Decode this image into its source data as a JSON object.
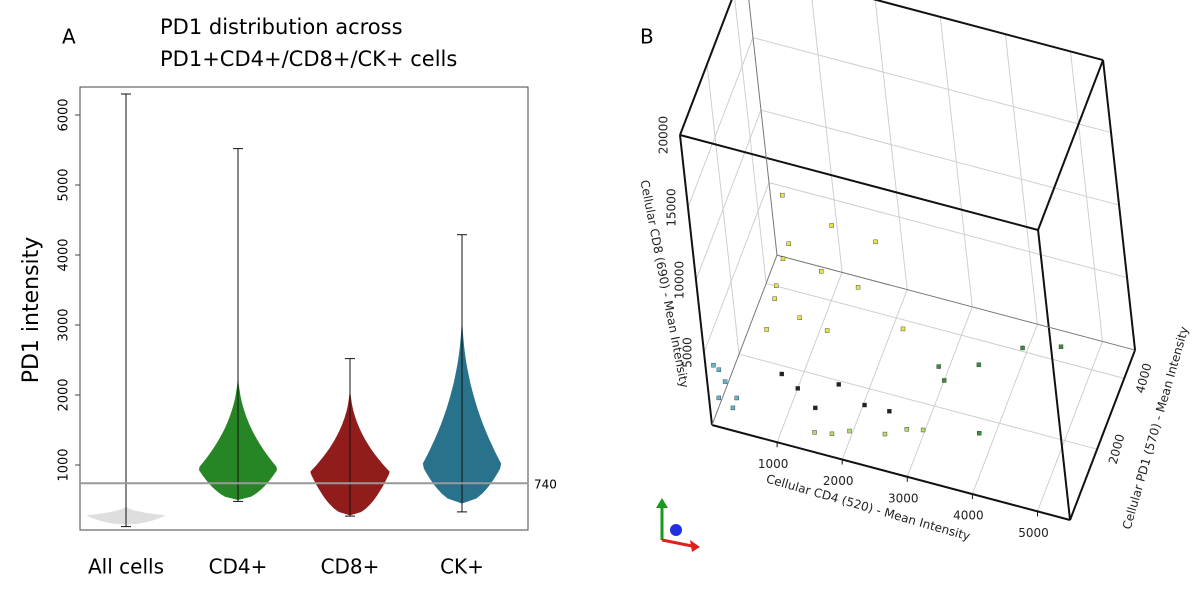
{
  "chart_data": [
    {
      "type": "violin",
      "panel": "A",
      "title": [
        "PD1 distribution across",
        "PD1+CD4+/CD8+/CK+ cells"
      ],
      "y_label": "PD1 intensity",
      "categories": [
        "All cells",
        "CD4+",
        "CD8+",
        "CK+"
      ],
      "whisker_min": [
        120,
        480,
        270,
        330
      ],
      "whisker_max": [
        6300,
        5520,
        2520,
        4290
      ],
      "violin_low": [
        150,
        500,
        280,
        450
      ],
      "violin_peak": [
        280,
        950,
        900,
        1000
      ],
      "violin_high": [
        420,
        2400,
        2200,
        3300
      ],
      "colors": [
        "#dcdcdc",
        "#1a7f1a",
        "#8b1010",
        "#1d6a85"
      ],
      "threshold": 740,
      "ylim": [
        0,
        6400
      ],
      "yticks": [
        1000,
        2000,
        3000,
        4000,
        5000,
        6000
      ]
    },
    {
      "type": "scatter3d",
      "panel": "B",
      "x_label": "Cellular CD4 (520) - Mean Intensity",
      "y_label": "Cellular CD8 (690) - Mean Intensity",
      "z_label": "Cellular PD1 (570) - Mean Intensity",
      "xlim": [
        0,
        5500
      ],
      "ylim": [
        0,
        20000
      ],
      "zlim": [
        0,
        4800
      ],
      "xticks": [
        1000,
        2000,
        3000,
        4000,
        5000
      ],
      "yticks": [
        5000,
        10000,
        15000,
        20000
      ],
      "zticks": [
        2000,
        4000
      ],
      "series": [
        {
          "color": "#e6e64a",
          "x": [
            800,
            1000,
            1200,
            1500,
            700,
            1800,
            1300,
            2000,
            900,
            1600,
            2300,
            2500,
            1100
          ],
          "y": [
            6000,
            9000,
            11000,
            8000,
            4500,
            12000,
            6500,
            7000,
            7500,
            5000,
            10000,
            3500,
            13500
          ],
          "z": [
            1500,
            1500,
            1200,
            1800,
            1200,
            1600,
            1000,
            2000,
            1300,
            1400,
            2200,
            2500,
            1500
          ]
        },
        {
          "color": "#5fb7d4",
          "x": [
            100,
            200,
            300,
            150,
            250,
            100
          ],
          "y": [
            1500,
            2500,
            1000,
            3500,
            500,
            4000
          ],
          "z": [
            200,
            300,
            500,
            200,
            400,
            100
          ]
        },
        {
          "color": "#222222",
          "x": [
            1200,
            1500,
            1800,
            2200,
            1000,
            2500
          ],
          "y": [
            2000,
            1500,
            2500,
            1800,
            3000,
            1000
          ],
          "z": [
            800,
            600,
            1000,
            900,
            700,
            1200
          ]
        },
        {
          "color": "#b5d96b",
          "x": [
            1500,
            2000,
            2500,
            1800,
            3000,
            2800
          ],
          "y": [
            300,
            500,
            400,
            800,
            300,
            600
          ],
          "z": [
            400,
            600,
            800,
            300,
            1200,
            1000
          ]
        },
        {
          "color": "#3a8f3a",
          "x": [
            3000,
            3500,
            4000,
            3200,
            3800,
            4500
          ],
          "y": [
            1500,
            1000,
            800,
            2000,
            300,
            500
          ],
          "z": [
            2500,
            3000,
            3800,
            2000,
            1500,
            4200
          ]
        }
      ]
    }
  ]
}
